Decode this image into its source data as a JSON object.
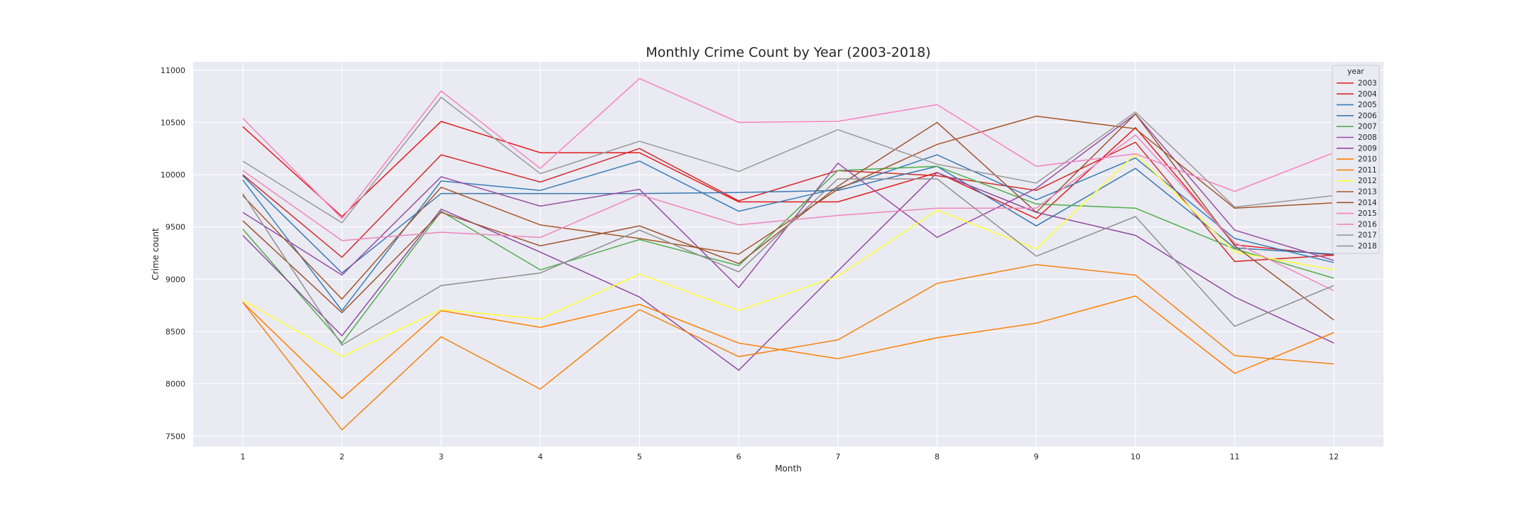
{
  "chart_data": {
    "type": "line",
    "title": "Monthly Crime Count by Year (2003-2018)",
    "xlabel": "Month",
    "ylabel": "Crime count",
    "x": [
      1,
      2,
      3,
      4,
      5,
      6,
      7,
      8,
      9,
      10,
      11,
      12
    ],
    "xlim": [
      0.5,
      12.5
    ],
    "ylim": [
      7400,
      11080
    ],
    "yticks": [
      7500,
      8000,
      8500,
      9000,
      9500,
      10000,
      10500,
      11000
    ],
    "grid": true,
    "legend": {
      "title": "year",
      "placement": "top-right"
    },
    "series": [
      {
        "name": "2003",
        "color": "#e41a1c",
        "values": [
          10460,
          9600,
          10510,
          10210,
          10210,
          9740,
          9740,
          10020,
          9580,
          10450,
          9330,
          9230
        ]
      },
      {
        "name": "2004",
        "color": "#d42a2a",
        "values": [
          10000,
          9210,
          10190,
          9930,
          10250,
          9750,
          10040,
          9990,
          9850,
          10310,
          9170,
          9230
        ]
      },
      {
        "name": "2005",
        "color": "#377eb8",
        "values": [
          9950,
          8700,
          9940,
          9850,
          10130,
          9650,
          9870,
          10190,
          9760,
          10160,
          9390,
          9160
        ]
      },
      {
        "name": "2006",
        "color": "#3a78b0",
        "values": [
          9990,
          9060,
          9820,
          9820,
          9820,
          9830,
          9850,
          10080,
          9510,
          10060,
          9300,
          9240
        ]
      },
      {
        "name": "2007",
        "color": "#4daf4a",
        "values": [
          9480,
          8390,
          9650,
          9090,
          9380,
          9130,
          10040,
          10080,
          9720,
          9680,
          9290,
          9010
        ]
      },
      {
        "name": "2008",
        "color": "#984ea3",
        "values": [
          9640,
          9040,
          9980,
          9700,
          9860,
          8920,
          10110,
          9400,
          9870,
          10580,
          9470,
          9180
        ]
      },
      {
        "name": "2009",
        "color": "#8e4a9e",
        "values": [
          9420,
          8460,
          9670,
          9260,
          8830,
          8130,
          9080,
          10020,
          9640,
          9420,
          8830,
          8390
        ]
      },
      {
        "name": "2010",
        "color": "#ff7f00",
        "values": [
          8780,
          7860,
          8700,
          8540,
          8760,
          8390,
          8240,
          8440,
          8580,
          8840,
          8100,
          8490
        ]
      },
      {
        "name": "2011",
        "color": "#f2830e",
        "values": [
          8780,
          7560,
          8450,
          7950,
          8710,
          8260,
          8420,
          8960,
          9140,
          9040,
          8270,
          8190
        ]
      },
      {
        "name": "2012",
        "color": "#ffff33",
        "values": [
          8800,
          8260,
          8710,
          8620,
          9050,
          8700,
          9030,
          9660,
          9290,
          10200,
          9260,
          9090
        ]
      },
      {
        "name": "2013",
        "color": "#a65628",
        "values": [
          9800,
          8810,
          9880,
          9520,
          9390,
          9240,
          9860,
          10290,
          10560,
          10440,
          9680,
          9730
        ]
      },
      {
        "name": "2014",
        "color": "#9c5330",
        "values": [
          9560,
          8680,
          9640,
          9320,
          9510,
          9150,
          9890,
          10500,
          9640,
          10580,
          9320,
          8610
        ]
      },
      {
        "name": "2015",
        "color": "#f781bf",
        "values": [
          10540,
          9580,
          10800,
          10060,
          10920,
          10500,
          10510,
          10670,
          10080,
          10200,
          9840,
          10210
        ]
      },
      {
        "name": "2016",
        "color": "#ee86bd",
        "values": [
          10040,
          9370,
          9450,
          9400,
          9810,
          9520,
          9610,
          9680,
          9680,
          10380,
          9350,
          8890
        ]
      },
      {
        "name": "2017",
        "color": "#999999",
        "values": [
          10130,
          9540,
          10740,
          10010,
          10320,
          10030,
          10430,
          10100,
          9920,
          10600,
          9690,
          9800
        ]
      },
      {
        "name": "2018",
        "color": "#8f8f8f",
        "values": [
          9820,
          8370,
          8940,
          9060,
          9470,
          9070,
          9960,
          9960,
          9220,
          9600,
          8550,
          8940
        ]
      }
    ]
  }
}
